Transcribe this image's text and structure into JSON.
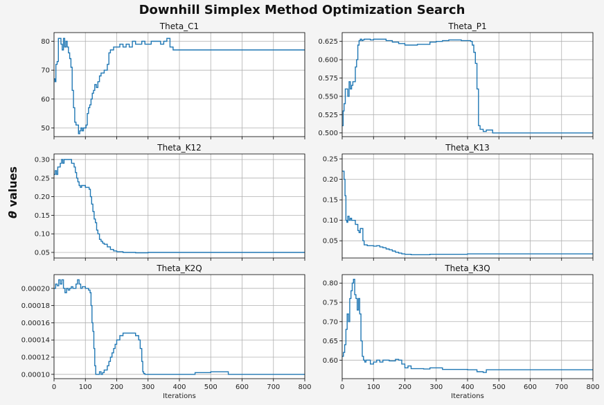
{
  "title": "Downhill Simplex Method Optimization Search",
  "ylabel_math": "θ",
  "ylabel_text": " values",
  "line_color": "#1f77b4",
  "chart_data": [
    {
      "type": "line",
      "title": "Theta_C1",
      "xlabel": "",
      "xlim": [
        0,
        800
      ],
      "ylim": [
        47,
        83
      ],
      "xticks": [
        0,
        100,
        200,
        300,
        400,
        500,
        600,
        700,
        800
      ],
      "yticks": [
        50,
        60,
        70,
        80
      ],
      "ytick_labels": [
        "50",
        "60",
        "70",
        "80"
      ],
      "grid": true,
      "x": [
        0,
        3,
        6,
        10,
        14,
        18,
        22,
        26,
        30,
        34,
        38,
        42,
        46,
        50,
        54,
        58,
        62,
        66,
        70,
        74,
        78,
        82,
        86,
        90,
        94,
        98,
        102,
        106,
        110,
        114,
        118,
        122,
        126,
        130,
        135,
        140,
        145,
        150,
        155,
        160,
        165,
        170,
        175,
        180,
        190,
        200,
        210,
        220,
        230,
        240,
        250,
        260,
        270,
        280,
        290,
        300,
        310,
        320,
        330,
        340,
        350,
        360,
        370,
        380,
        390,
        400,
        410,
        420,
        430,
        440,
        450,
        460,
        480,
        500,
        550,
        600,
        700,
        800
      ],
      "y": [
        67,
        66,
        72,
        73,
        81,
        81,
        79,
        77,
        81,
        78,
        80,
        78,
        76,
        74,
        71,
        63,
        57,
        52,
        51,
        51,
        48,
        49,
        50,
        49,
        50,
        50,
        51,
        55,
        57,
        58,
        60,
        62,
        63,
        65,
        64,
        66,
        68,
        69,
        69,
        70,
        70,
        72,
        76,
        77,
        78,
        78,
        79,
        78,
        79,
        78,
        80,
        79,
        79,
        80,
        79,
        79,
        80,
        80,
        80,
        79,
        80,
        81,
        78,
        77,
        77,
        77,
        77,
        77,
        77,
        77,
        77,
        77,
        77,
        77,
        77,
        77,
        77,
        77
      ]
    },
    {
      "type": "line",
      "title": "Theta_P1",
      "xlabel": "",
      "xlim": [
        0,
        800
      ],
      "ylim": [
        0.495,
        0.637
      ],
      "xticks": [
        0,
        100,
        200,
        300,
        400,
        500,
        600,
        700,
        800
      ],
      "yticks": [
        0.5,
        0.525,
        0.55,
        0.575,
        0.6,
        0.625
      ],
      "ytick_labels": [
        "0.500",
        "0.525",
        "0.550",
        "0.575",
        "0.600",
        "0.625"
      ],
      "grid": true,
      "x": [
        0,
        3,
        6,
        10,
        14,
        18,
        22,
        26,
        30,
        34,
        38,
        42,
        46,
        50,
        54,
        58,
        62,
        66,
        70,
        80,
        90,
        100,
        120,
        140,
        160,
        180,
        200,
        220,
        240,
        260,
        280,
        300,
        320,
        340,
        360,
        380,
        400,
        410,
        415,
        420,
        425,
        430,
        435,
        440,
        450,
        460,
        480,
        500,
        550,
        600,
        700,
        800
      ],
      "y": [
        0.51,
        0.53,
        0.54,
        0.56,
        0.56,
        0.55,
        0.57,
        0.56,
        0.565,
        0.57,
        0.57,
        0.59,
        0.6,
        0.62,
        0.626,
        0.628,
        0.626,
        0.627,
        0.628,
        0.628,
        0.627,
        0.628,
        0.628,
        0.626,
        0.624,
        0.622,
        0.62,
        0.62,
        0.621,
        0.621,
        0.624,
        0.625,
        0.626,
        0.627,
        0.627,
        0.626,
        0.626,
        0.625,
        0.62,
        0.61,
        0.595,
        0.56,
        0.51,
        0.505,
        0.502,
        0.504,
        0.5,
        0.5,
        0.5,
        0.5,
        0.5,
        0.5
      ]
    },
    {
      "type": "line",
      "title": "Theta_K12",
      "xlabel": "",
      "xlim": [
        0,
        800
      ],
      "ylim": [
        0.035,
        0.315
      ],
      "xticks": [
        0,
        100,
        200,
        300,
        400,
        500,
        600,
        700,
        800
      ],
      "yticks": [
        0.05,
        0.1,
        0.15,
        0.2,
        0.25,
        0.3
      ],
      "ytick_labels": [
        "0.05",
        "0.10",
        "0.15",
        "0.20",
        "0.25",
        "0.30"
      ],
      "grid": true,
      "x": [
        0,
        4,
        8,
        12,
        16,
        20,
        24,
        28,
        32,
        36,
        40,
        44,
        48,
        52,
        56,
        60,
        64,
        68,
        72,
        76,
        80,
        84,
        88,
        92,
        96,
        100,
        104,
        108,
        112,
        116,
        120,
        124,
        128,
        132,
        136,
        140,
        145,
        150,
        155,
        160,
        170,
        180,
        190,
        200,
        220,
        240,
        260,
        280,
        300,
        400,
        500,
        600,
        700,
        800
      ],
      "y": [
        0.26,
        0.27,
        0.26,
        0.28,
        0.28,
        0.29,
        0.3,
        0.29,
        0.3,
        0.3,
        0.3,
        0.3,
        0.3,
        0.3,
        0.29,
        0.29,
        0.28,
        0.265,
        0.25,
        0.24,
        0.23,
        0.225,
        0.23,
        0.23,
        0.23,
        0.225,
        0.225,
        0.225,
        0.22,
        0.2,
        0.18,
        0.16,
        0.14,
        0.13,
        0.11,
        0.1,
        0.085,
        0.08,
        0.075,
        0.072,
        0.065,
        0.058,
        0.054,
        0.052,
        0.05,
        0.05,
        0.049,
        0.049,
        0.05,
        0.05,
        0.05,
        0.05,
        0.05,
        0.05
      ]
    },
    {
      "type": "line",
      "title": "Theta_K13",
      "xlabel": "",
      "xlim": [
        0,
        800
      ],
      "ylim": [
        0.008,
        0.262
      ],
      "xticks": [
        0,
        100,
        200,
        300,
        400,
        500,
        600,
        700,
        800
      ],
      "yticks": [
        0.05,
        0.1,
        0.15,
        0.2,
        0.25
      ],
      "ytick_labels": [
        "0.05",
        "0.10",
        "0.15",
        "0.20",
        "0.25"
      ],
      "grid": true,
      "x": [
        0,
        3,
        6,
        9,
        12,
        15,
        18,
        22,
        26,
        30,
        34,
        38,
        42,
        46,
        50,
        54,
        58,
        62,
        66,
        70,
        80,
        90,
        100,
        110,
        120,
        130,
        140,
        150,
        160,
        170,
        180,
        190,
        200,
        220,
        240,
        260,
        280,
        300,
        350,
        400,
        500,
        600,
        700,
        800
      ],
      "y": [
        0.22,
        0.22,
        0.2,
        0.16,
        0.1,
        0.095,
        0.11,
        0.1,
        0.105,
        0.1,
        0.1,
        0.1,
        0.09,
        0.09,
        0.075,
        0.07,
        0.08,
        0.08,
        0.05,
        0.04,
        0.038,
        0.038,
        0.037,
        0.038,
        0.035,
        0.033,
        0.03,
        0.028,
        0.025,
        0.022,
        0.02,
        0.018,
        0.017,
        0.016,
        0.016,
        0.016,
        0.017,
        0.017,
        0.017,
        0.018,
        0.018,
        0.018,
        0.018,
        0.018
      ]
    },
    {
      "type": "line",
      "title": "Theta_K2Q",
      "xlabel": "Iterations",
      "xlim": [
        0,
        800
      ],
      "ylim": [
        9.5e-05,
        0.000216
      ],
      "xticks": [
        0,
        100,
        200,
        300,
        400,
        500,
        600,
        700,
        800
      ],
      "xtick_labels": [
        "0",
        "100",
        "200",
        "300",
        "400",
        "500",
        "600",
        "700",
        "800"
      ],
      "yticks": [
        0.0001,
        0.00012,
        0.00014,
        0.00016,
        0.00018,
        0.0002
      ],
      "ytick_labels": [
        "0.00010",
        "0.00012",
        "0.00014",
        "0.00016",
        "0.00018",
        "0.00020"
      ],
      "grid": true,
      "x": [
        0,
        5,
        10,
        15,
        20,
        25,
        30,
        35,
        40,
        45,
        50,
        55,
        60,
        65,
        70,
        75,
        80,
        85,
        90,
        95,
        100,
        105,
        110,
        115,
        118,
        121,
        124,
        127,
        130,
        133,
        136,
        140,
        145,
        150,
        155,
        160,
        165,
        170,
        175,
        180,
        185,
        190,
        195,
        200,
        210,
        220,
        230,
        240,
        250,
        260,
        270,
        275,
        280,
        283,
        286,
        290,
        300,
        320,
        350,
        400,
        450,
        500,
        550,
        556,
        600,
        700,
        800
      ],
      "y": [
        0.0002,
        0.000205,
        0.000203,
        0.00021,
        0.000205,
        0.00021,
        0.0002,
        0.000195,
        0.0002,
        0.000198,
        0.0002,
        0.000202,
        0.0002,
        0.0002,
        0.000205,
        0.00021,
        0.000205,
        0.0002,
        0.000202,
        0.000202,
        0.0002,
        0.0002,
        0.000198,
        0.000195,
        0.00018,
        0.00016,
        0.00015,
        0.00013,
        0.00011,
        0.0001,
        0.0001,
        0.0001,
        0.000103,
        0.0001,
        0.000102,
        0.000105,
        0.000105,
        0.00011,
        0.000115,
        0.00012,
        0.000125,
        0.00013,
        0.000135,
        0.00014,
        0.000145,
        0.000148,
        0.000148,
        0.000148,
        0.000148,
        0.000145,
        0.00014,
        0.00013,
        0.000115,
        0.000103,
        0.000101,
        0.0001,
        0.0001,
        0.0001,
        0.0001,
        0.0001,
        0.000102,
        0.000103,
        0.000103,
        0.0001,
        0.0001,
        0.0001,
        0.0001
      ]
    },
    {
      "type": "line",
      "title": "Theta_K3Q",
      "xlabel": "Iterations",
      "xlim": [
        0,
        800
      ],
      "ylim": [
        0.552,
        0.822
      ],
      "xticks": [
        0,
        100,
        200,
        300,
        400,
        500,
        600,
        700,
        800
      ],
      "xtick_labels": [
        "0",
        "100",
        "200",
        "300",
        "400",
        "500",
        "600",
        "700",
        "800"
      ],
      "yticks": [
        0.6,
        0.65,
        0.7,
        0.75,
        0.8
      ],
      "ytick_labels": [
        "0.60",
        "0.65",
        "0.70",
        "0.75",
        "0.80"
      ],
      "grid": true,
      "x": [
        0,
        4,
        8,
        12,
        16,
        20,
        24,
        28,
        32,
        36,
        40,
        44,
        48,
        52,
        56,
        60,
        64,
        68,
        72,
        76,
        80,
        90,
        100,
        110,
        120,
        130,
        140,
        150,
        160,
        170,
        180,
        190,
        200,
        210,
        220,
        240,
        260,
        280,
        300,
        320,
        350,
        400,
        430,
        440,
        450,
        460,
        500,
        550,
        600,
        700,
        800
      ],
      "y": [
        0.61,
        0.62,
        0.64,
        0.68,
        0.72,
        0.7,
        0.76,
        0.78,
        0.8,
        0.81,
        0.77,
        0.76,
        0.73,
        0.76,
        0.72,
        0.65,
        0.61,
        0.6,
        0.595,
        0.6,
        0.6,
        0.59,
        0.595,
        0.6,
        0.595,
        0.6,
        0.6,
        0.598,
        0.598,
        0.602,
        0.6,
        0.59,
        0.58,
        0.585,
        0.578,
        0.578,
        0.577,
        0.58,
        0.58,
        0.576,
        0.576,
        0.575,
        0.57,
        0.57,
        0.568,
        0.575,
        0.575,
        0.575,
        0.575,
        0.575,
        0.575
      ]
    }
  ]
}
